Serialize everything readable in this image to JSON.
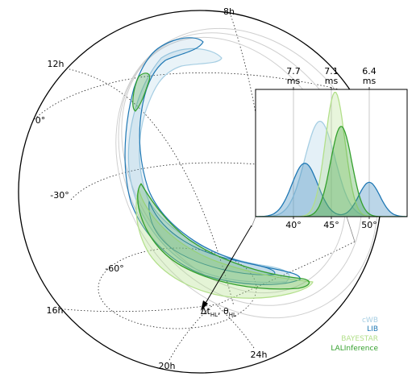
{
  "chart_data": [
    {
      "type": "sky-map",
      "projection": "orthographic",
      "ra_tick_labels": [
        "8h",
        "12h",
        "16h",
        "20h",
        "24h"
      ],
      "dec_tick_labels": [
        "0°",
        "-30°",
        "-60°"
      ],
      "arrow_label_main": "Δt",
      "arrow_label_sub1": "HL",
      "arrow_label_mid": ", θ",
      "arrow_label_sub2": "HL",
      "series": [
        {
          "name": "cWB",
          "color": "#a6cee3"
        },
        {
          "name": "LIB",
          "color": "#1f78b4"
        },
        {
          "name": "BAYESTAR",
          "color": "#b2df8a"
        },
        {
          "name": "LALInference",
          "color": "#33a02c"
        }
      ],
      "legend": "lower-right",
      "grid": true
    },
    {
      "type": "area",
      "xlabel": "",
      "ylabel": "",
      "xlim": [
        35,
        55
      ],
      "ylim": [
        0,
        1.0
      ],
      "x_ticks": [
        40,
        45,
        50
      ],
      "x_tick_labels": [
        "40°",
        "45°",
        "50°"
      ],
      "top_ticks": [
        {
          "x": 40,
          "label": "7.7",
          "unit": "ms"
        },
        {
          "x": 45,
          "label": "7.1",
          "unit": "ms"
        },
        {
          "x": 50,
          "label": "6.4",
          "unit": "ms"
        }
      ],
      "series": [
        {
          "name": "cWB",
          "color": "#a6cee3",
          "components": [
            {
              "mu": 43.5,
              "sigma": 2.0,
              "amp": 0.75
            }
          ]
        },
        {
          "name": "LIB",
          "color": "#1f78b4",
          "components": [
            {
              "mu": 41.5,
              "sigma": 1.7,
              "amp": 0.42
            },
            {
              "mu": 50.0,
              "sigma": 1.4,
              "amp": 0.27
            }
          ]
        },
        {
          "name": "BAYESTAR",
          "color": "#b2df8a",
          "components": [
            {
              "mu": 45.5,
              "sigma": 1.3,
              "amp": 0.98
            }
          ]
        },
        {
          "name": "LALInference",
          "color": "#33a02c",
          "components": [
            {
              "mu": 46.3,
              "sigma": 1.4,
              "amp": 0.71
            }
          ]
        }
      ]
    }
  ]
}
